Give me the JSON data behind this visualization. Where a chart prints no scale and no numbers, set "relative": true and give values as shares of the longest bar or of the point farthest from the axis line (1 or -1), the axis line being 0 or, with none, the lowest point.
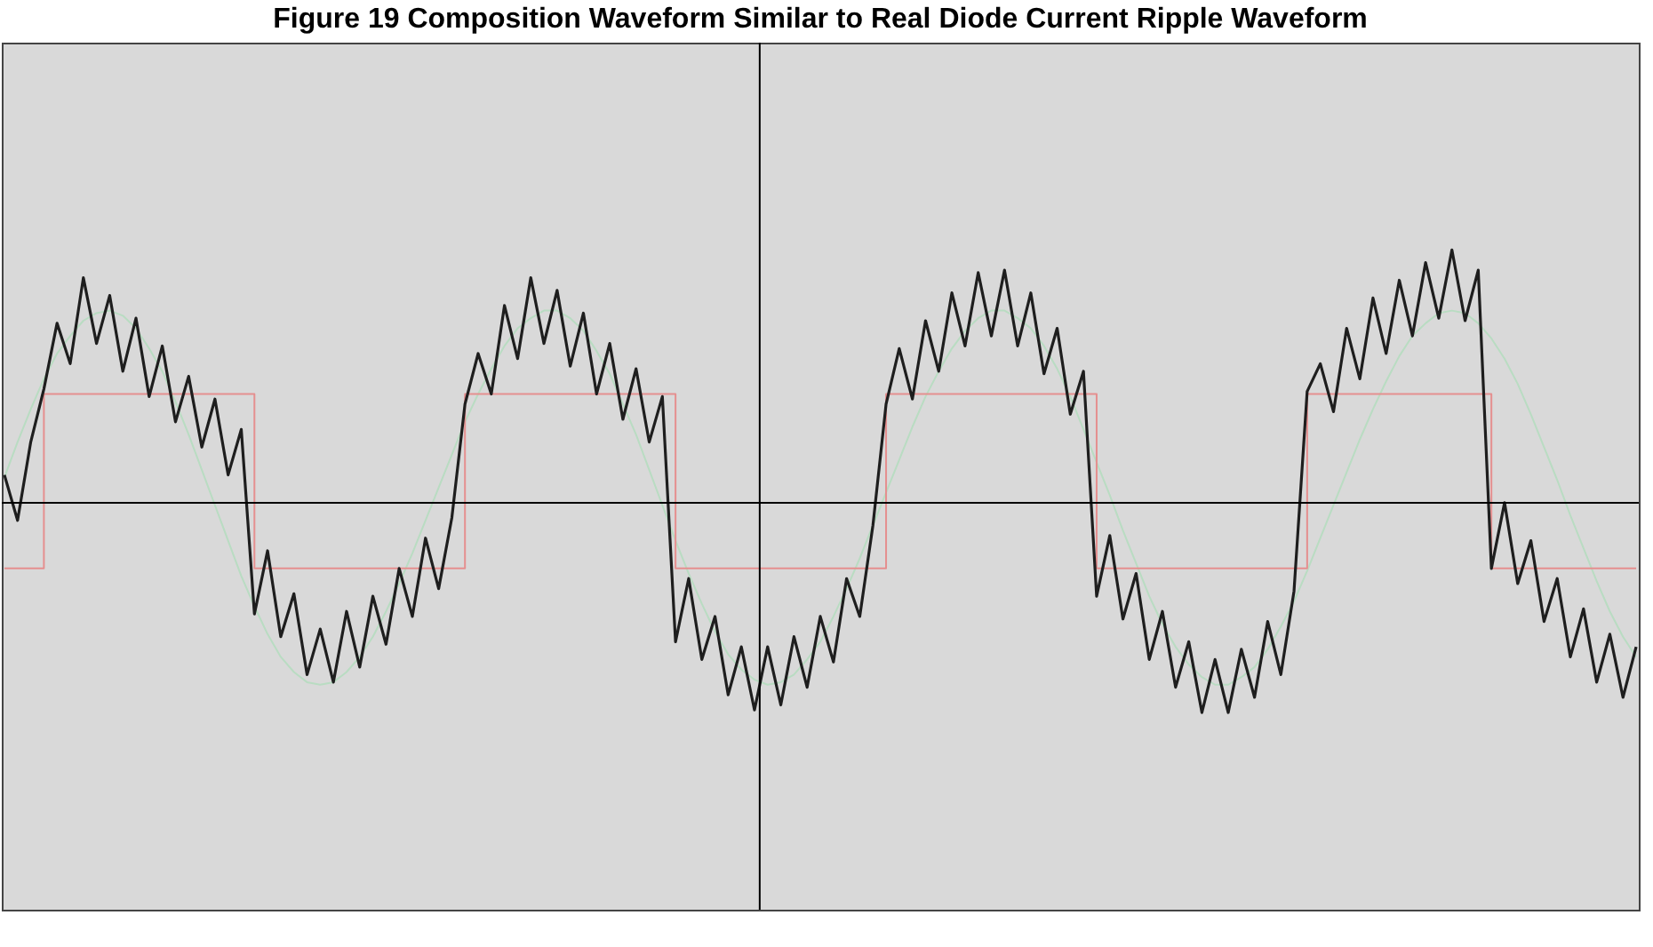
{
  "chart_data": {
    "type": "line",
    "title": "Figure 19 Composition Waveform Similar to Real Diode Current Ripple Waveform",
    "relative": true,
    "categories": [
      null,
      null,
      null,
      null,
      null,
      null,
      null,
      null,
      null,
      null,
      null,
      null,
      null,
      null,
      null,
      null,
      null,
      null,
      null,
      null,
      null,
      null,
      null,
      null,
      null,
      null,
      null,
      null,
      null,
      null,
      null,
      null,
      null,
      null,
      null,
      null,
      null,
      null,
      null,
      null,
      null,
      null,
      null,
      null,
      null,
      null,
      null,
      null,
      null,
      null,
      null,
      null,
      null,
      null,
      null,
      null,
      null,
      null,
      null,
      null,
      null,
      null,
      null,
      null,
      null,
      null,
      null,
      null,
      null,
      null,
      null,
      null,
      null,
      null,
      null,
      null,
      null,
      null,
      null,
      null,
      null,
      null,
      null,
      null,
      null,
      null,
      null,
      null,
      null,
      null,
      null,
      null,
      null,
      null,
      null,
      null,
      null,
      null,
      null,
      null,
      null,
      null,
      null,
      null,
      null,
      null,
      null,
      null,
      null,
      null,
      null,
      null,
      null,
      null,
      null,
      null,
      null,
      null,
      null,
      null,
      null,
      null,
      null,
      null,
      null
    ],
    "series": [
      {
        "color": "#b9dcc2",
        "values": [
          0.1,
          0.24,
          0.37,
          0.49,
          0.59,
          0.66,
          0.72,
          0.75,
          0.76,
          0.74,
          0.69,
          0.61,
          0.52,
          0.4,
          0.27,
          0.13,
          -0.01,
          -0.15,
          -0.29,
          -0.41,
          -0.52,
          -0.61,
          -0.67,
          -0.71,
          -0.72,
          -0.71,
          -0.67,
          -0.61,
          -0.53,
          -0.43,
          -0.32,
          -0.2,
          -0.07,
          0.06,
          0.19,
          0.32,
          0.43,
          0.53,
          0.62,
          0.69,
          0.73,
          0.76,
          0.76,
          0.73,
          0.68,
          0.6,
          0.51,
          0.39,
          0.27,
          0.13,
          -0.01,
          -0.15,
          -0.28,
          -0.4,
          -0.51,
          -0.6,
          -0.66,
          -0.7,
          -0.72,
          -0.71,
          -0.68,
          -0.62,
          -0.55,
          -0.45,
          -0.34,
          -0.22,
          -0.09,
          0.04,
          0.17,
          0.3,
          0.42,
          0.52,
          0.61,
          0.68,
          0.73,
          0.76,
          0.76,
          0.73,
          0.69,
          0.62,
          0.53,
          0.42,
          0.29,
          0.16,
          0.03,
          -0.11,
          -0.24,
          -0.37,
          -0.48,
          -0.57,
          -0.64,
          -0.69,
          -0.72,
          -0.72,
          -0.69,
          -0.65,
          -0.58,
          -0.49,
          -0.39,
          -0.27,
          -0.14,
          -0.01,
          0.12,
          0.25,
          0.37,
          0.48,
          0.58,
          0.66,
          0.71,
          0.75,
          0.76,
          0.75,
          0.71,
          0.65,
          0.57,
          0.47,
          0.35,
          0.22,
          0.09,
          -0.05,
          -0.18,
          -0.31,
          -0.43,
          -0.53,
          -0.61
        ]
      },
      {
        "type": "step",
        "color": "#e58f8f",
        "values": [
          -0.26,
          -0.26,
          -0.26,
          0.43,
          0.43,
          0.43,
          0.43,
          0.43,
          0.43,
          0.43,
          0.43,
          0.43,
          0.43,
          0.43,
          0.43,
          0.43,
          0.43,
          0.43,
          0.43,
          -0.26,
          -0.26,
          -0.26,
          -0.26,
          -0.26,
          -0.26,
          -0.26,
          -0.26,
          -0.26,
          -0.26,
          -0.26,
          -0.26,
          -0.26,
          -0.26,
          -0.26,
          -0.26,
          0.43,
          0.43,
          0.43,
          0.43,
          0.43,
          0.43,
          0.43,
          0.43,
          0.43,
          0.43,
          0.43,
          0.43,
          0.43,
          0.43,
          0.43,
          0.43,
          -0.26,
          -0.26,
          -0.26,
          -0.26,
          -0.26,
          -0.26,
          -0.26,
          -0.26,
          -0.26,
          -0.26,
          -0.26,
          -0.26,
          -0.26,
          -0.26,
          -0.26,
          -0.26,
          0.43,
          0.43,
          0.43,
          0.43,
          0.43,
          0.43,
          0.43,
          0.43,
          0.43,
          0.43,
          0.43,
          0.43,
          0.43,
          0.43,
          0.43,
          0.43,
          -0.26,
          -0.26,
          -0.26,
          -0.26,
          -0.26,
          -0.26,
          -0.26,
          -0.26,
          -0.26,
          -0.26,
          -0.26,
          -0.26,
          -0.26,
          -0.26,
          -0.26,
          -0.26,
          0.43,
          0.43,
          0.43,
          0.43,
          0.43,
          0.43,
          0.43,
          0.43,
          0.43,
          0.43,
          0.43,
          0.43,
          0.43,
          0.43,
          -0.26,
          -0.26,
          -0.26,
          -0.26,
          -0.26,
          -0.26,
          -0.26,
          -0.26,
          -0.26,
          -0.26,
          -0.26,
          -0.26
        ]
      },
      {
        "color": "#1e1e1e",
        "values": [
          0.11,
          -0.07,
          0.24,
          0.45,
          0.71,
          0.55,
          0.89,
          0.63,
          0.82,
          0.52,
          0.73,
          0.42,
          0.62,
          0.32,
          0.5,
          0.22,
          0.41,
          0.11,
          0.29,
          -0.44,
          -0.19,
          -0.53,
          -0.36,
          -0.68,
          -0.5,
          -0.71,
          -0.43,
          -0.65,
          -0.37,
          -0.56,
          -0.26,
          -0.45,
          -0.14,
          -0.34,
          -0.06,
          0.39,
          0.59,
          0.43,
          0.78,
          0.57,
          0.89,
          0.63,
          0.84,
          0.54,
          0.75,
          0.43,
          0.63,
          0.33,
          0.53,
          0.24,
          0.42,
          -0.55,
          -0.3,
          -0.62,
          -0.45,
          -0.76,
          -0.57,
          -0.82,
          -0.57,
          -0.8,
          -0.53,
          -0.73,
          -0.45,
          -0.63,
          -0.3,
          -0.45,
          -0.09,
          0.39,
          0.61,
          0.41,
          0.72,
          0.52,
          0.83,
          0.62,
          0.91,
          0.66,
          0.92,
          0.62,
          0.83,
          0.51,
          0.69,
          0.35,
          0.52,
          -0.37,
          -0.13,
          -0.46,
          -0.28,
          -0.62,
          -0.43,
          -0.73,
          -0.55,
          -0.83,
          -0.62,
          -0.83,
          -0.58,
          -0.77,
          -0.47,
          -0.68,
          -0.35,
          0.44,
          0.55,
          0.36,
          0.69,
          0.49,
          0.81,
          0.59,
          0.88,
          0.66,
          0.95,
          0.73,
          1,
          0.72,
          0.92,
          -0.26,
          0,
          -0.32,
          -0.15,
          -0.47,
          -0.3,
          -0.61,
          -0.42,
          -0.71,
          -0.52,
          -0.77,
          -0.57
        ]
      }
    ]
  }
}
